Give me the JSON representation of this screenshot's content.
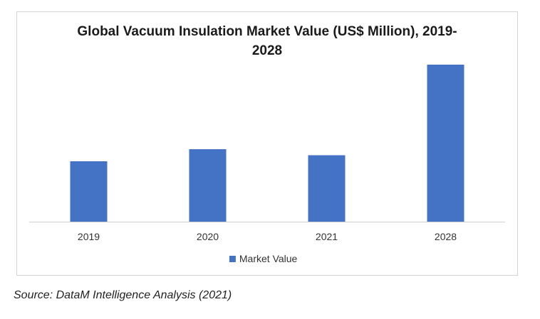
{
  "chart_data": {
    "type": "bar",
    "title_line1": "Global Vacuum Insulation Market Value (US$ Million), 2019-",
    "title_line2": "2028",
    "categories": [
      "2019",
      "2020",
      "2021",
      "2028"
    ],
    "series": [
      {
        "name": "Market Value",
        "values": [
          4.0,
          4.8,
          4.4,
          10.4
        ],
        "color": "#4472c4"
      }
    ],
    "ylim": [
      0,
      12
    ],
    "grid": false,
    "legend": "bottom-center",
    "xlabel": "",
    "ylabel": ""
  },
  "source": "Source: DataM Intelligence Analysis (2021)"
}
